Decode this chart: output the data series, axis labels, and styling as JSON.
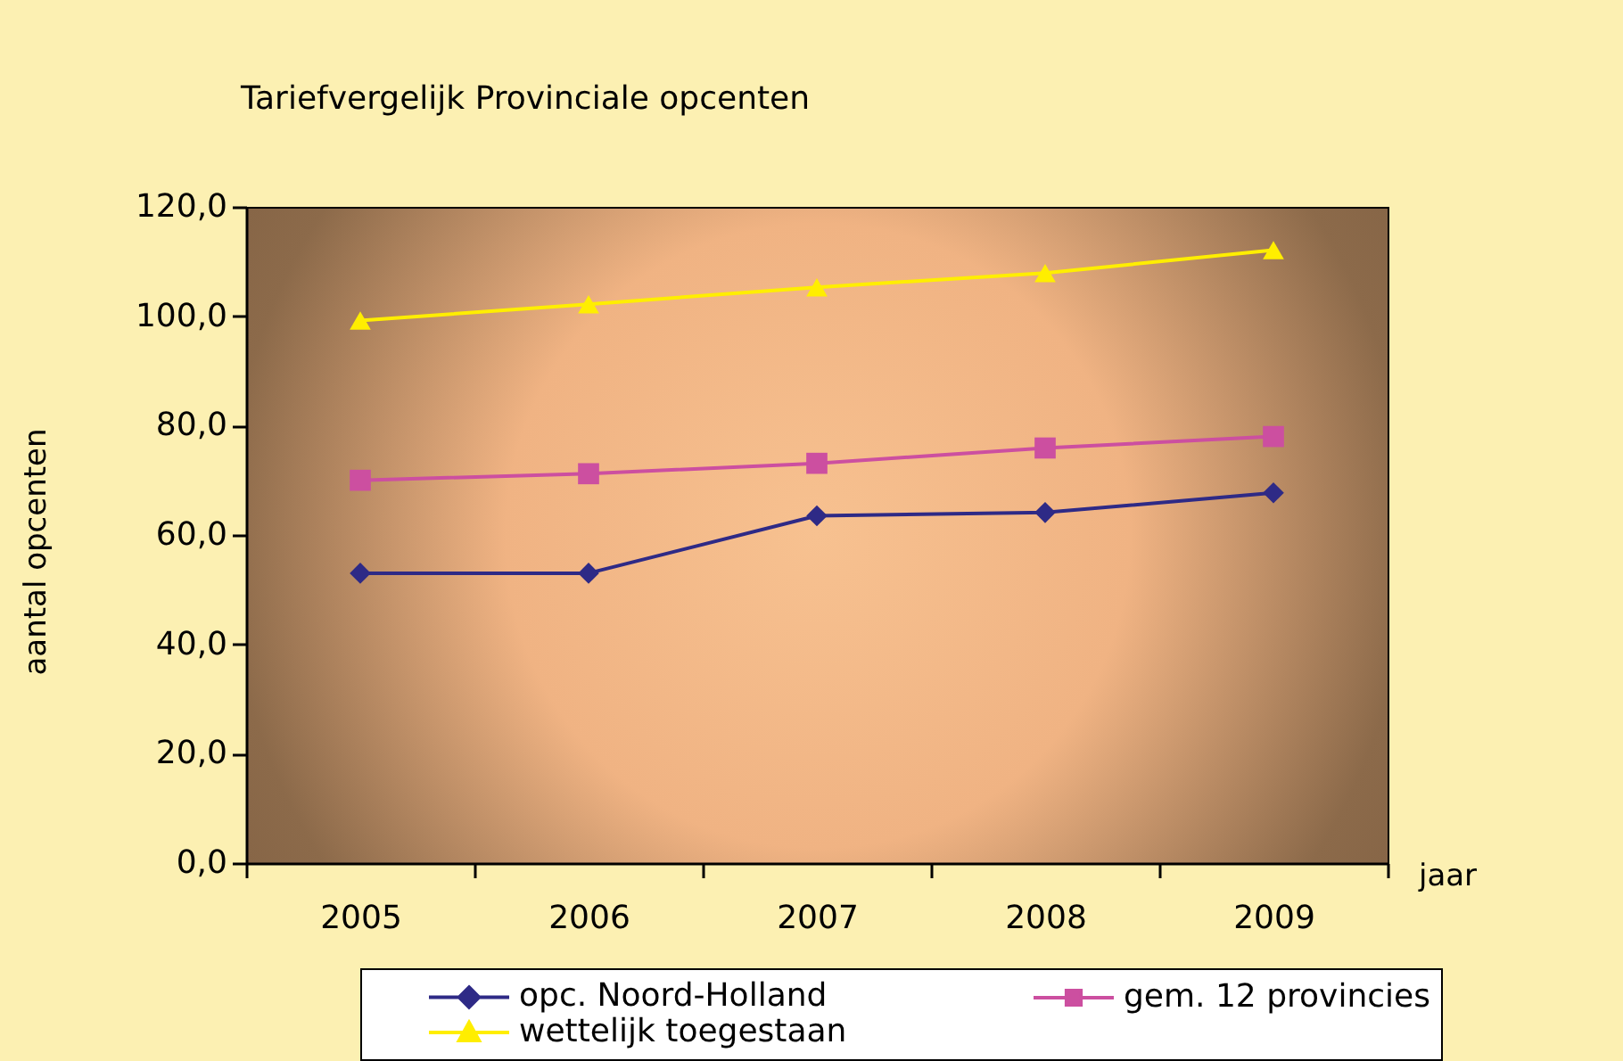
{
  "chart_data": {
    "type": "line",
    "title": "Tariefvergelijk Provinciale opcenten",
    "xlabel": "jaar",
    "ylabel": "aantal opcenten",
    "categories": [
      "2005",
      "2006",
      "2007",
      "2008",
      "2009"
    ],
    "series": [
      {
        "name": "opc. Noord-Holland",
        "color": "#2e2a86",
        "marker": "diamond",
        "values": [
          53.0,
          53.0,
          63.5,
          64.1,
          67.7
        ]
      },
      {
        "name": "gem. 12 provincies",
        "color": "#cc4fa0",
        "marker": "square",
        "values": [
          70.0,
          71.2,
          73.1,
          75.9,
          78.0
        ]
      },
      {
        "name": "wettelijk toegestaan",
        "color": "#ffee00",
        "marker": "triangle",
        "values": [
          99.2,
          102.2,
          105.3,
          107.9,
          112.1
        ]
      }
    ],
    "ylim": [
      0,
      120
    ],
    "yticks": [
      {
        "value": 0,
        "label": "0,0"
      },
      {
        "value": 20,
        "label": "20,0"
      },
      {
        "value": 40,
        "label": "40,0"
      },
      {
        "value": 60,
        "label": "60,0"
      },
      {
        "value": 80,
        "label": "80,0"
      },
      {
        "value": 100,
        "label": "100,0"
      },
      {
        "value": 120,
        "label": "120,0"
      }
    ],
    "legend": "bottom"
  }
}
